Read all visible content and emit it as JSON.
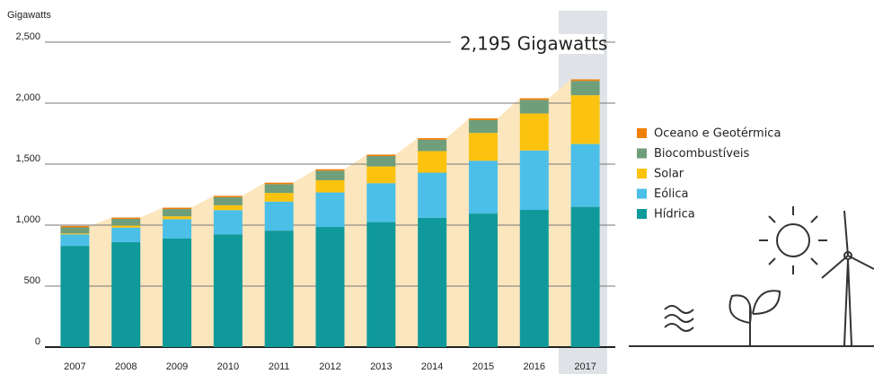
{
  "chart_data": {
    "type": "stacked_bar",
    "y_label": "Gigawatts",
    "annotation": "2,195 Gigawatts",
    "categories": [
      "2007",
      "2008",
      "2009",
      "2010",
      "2011",
      "2012",
      "2013",
      "2014",
      "2015",
      "2016",
      "2017"
    ],
    "series": [
      {
        "name": "Hídrica",
        "color": "#10999b",
        "values": [
          830,
          860,
          890,
          925,
          955,
          985,
          1025,
          1060,
          1095,
          1125,
          1150
        ]
      },
      {
        "name": "Eólica",
        "color": "#4bbfe8",
        "values": [
          94,
          120,
          159,
          198,
          238,
          283,
          319,
          370,
          433,
          487,
          515
        ]
      },
      {
        "name": "Solar",
        "color": "#fbc30f",
        "values": [
          8,
          16,
          23,
          40,
          71,
          100,
          137,
          177,
          228,
          303,
          400
        ]
      },
      {
        "name": "Biocombustíveis",
        "color": "#6f9e7a",
        "values": [
          50,
          55,
          60,
          66,
          72,
          78,
          85,
          93,
          106,
          112,
          117
        ]
      },
      {
        "name": "Oceano e Geotérmica",
        "color": "#f07f09",
        "values": [
          11,
          11,
          11,
          11,
          12,
          12,
          12,
          13,
          13,
          13,
          13
        ]
      }
    ],
    "ylim": [
      0,
      2500
    ],
    "yticks": [
      0,
      500,
      {
        "value": 1000,
        "label": "1,000"
      },
      {
        "value": 1500,
        "label": "1,500"
      },
      {
        "value": 2000,
        "label": "2,000"
      },
      {
        "value": 2500,
        "label": "2,500"
      }
    ],
    "grid": true,
    "legend": "right"
  }
}
